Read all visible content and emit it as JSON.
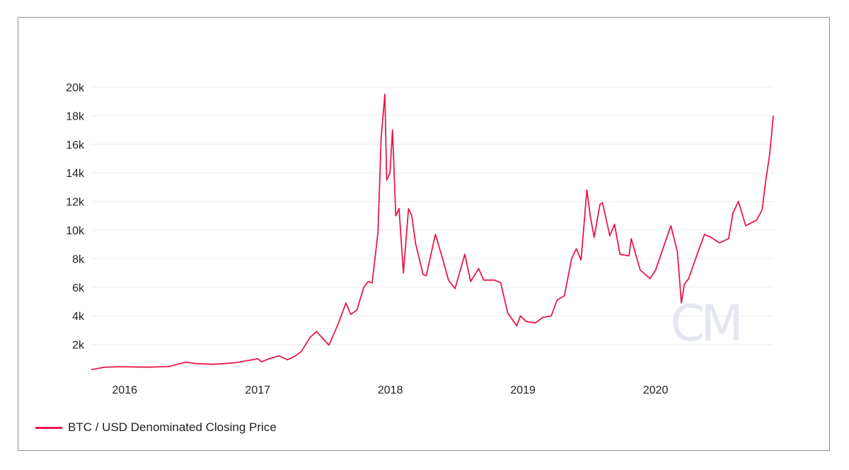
{
  "chart_data": {
    "type": "line",
    "title": "",
    "xlabel": "",
    "ylabel": "",
    "x_ticks": [
      "2016",
      "2017",
      "2018",
      "2019",
      "2020"
    ],
    "y_ticks": [
      "2k",
      "4k",
      "6k",
      "8k",
      "10k",
      "12k",
      "14k",
      "16k",
      "18k",
      "20k"
    ],
    "xlim": [
      "2015-10-01",
      "2020-11-20"
    ],
    "ylim": [
      0,
      20000
    ],
    "grid": true,
    "legend_position": "bottom-left",
    "watermark": "CM",
    "series": [
      {
        "name": "BTC / USD Denominated Closing Price",
        "color": "#e8194a",
        "x": [
          "2015-10-01",
          "2015-11-05",
          "2015-12-15",
          "2016-01-15",
          "2016-03-01",
          "2016-05-01",
          "2016-06-17",
          "2016-07-15",
          "2016-09-01",
          "2016-11-01",
          "2017-01-01",
          "2017-01-12",
          "2017-02-01",
          "2017-03-01",
          "2017-03-24",
          "2017-04-15",
          "2017-05-01",
          "2017-05-25",
          "2017-06-12",
          "2017-07-16",
          "2017-08-10",
          "2017-09-01",
          "2017-09-14",
          "2017-10-01",
          "2017-10-20",
          "2017-11-01",
          "2017-11-12",
          "2017-11-28",
          "2017-12-07",
          "2017-12-17",
          "2017-12-22",
          "2017-12-31",
          "2018-01-07",
          "2018-01-16",
          "2018-01-25",
          "2018-02-06",
          "2018-02-20",
          "2018-03-01",
          "2018-03-12",
          "2018-03-20",
          "2018-04-01",
          "2018-04-10",
          "2018-05-05",
          "2018-05-25",
          "2018-06-10",
          "2018-06-28",
          "2018-07-25",
          "2018-08-10",
          "2018-09-01",
          "2018-09-15",
          "2018-10-15",
          "2018-11-01",
          "2018-11-20",
          "2018-12-15",
          "2018-12-25",
          "2019-01-10",
          "2019-02-05",
          "2019-02-25",
          "2019-03-20",
          "2019-04-05",
          "2019-04-25",
          "2019-05-15",
          "2019-05-28",
          "2019-06-10",
          "2019-06-26",
          "2019-07-05",
          "2019-07-16",
          "2019-08-01",
          "2019-08-08",
          "2019-08-28",
          "2019-09-10",
          "2019-09-25",
          "2019-10-20",
          "2019-10-26",
          "2019-11-20",
          "2019-12-17",
          "2020-01-01",
          "2020-01-20",
          "2020-02-12",
          "2020-03-01",
          "2020-03-12",
          "2020-03-20",
          "2020-04-01",
          "2020-04-30",
          "2020-05-15",
          "2020-06-01",
          "2020-06-25",
          "2020-07-20",
          "2020-08-01",
          "2020-08-16",
          "2020-09-05",
          "2020-09-20",
          "2020-10-05",
          "2020-10-20",
          "2020-10-30",
          "2020-11-10",
          "2020-11-20"
        ],
        "values": [
          240,
          400,
          440,
          430,
          410,
          450,
          760,
          660,
          610,
          720,
          1000,
          780,
          1000,
          1200,
          930,
          1200,
          1500,
          2500,
          2900,
          1950,
          3400,
          4900,
          4100,
          4400,
          6000,
          6400,
          6300,
          9800,
          16500,
          19500,
          13500,
          14000,
          17000,
          11000,
          11500,
          7000,
          11500,
          11000,
          9000,
          8200,
          6900,
          6800,
          9700,
          8000,
          6500,
          5900,
          8300,
          6400,
          7300,
          6500,
          6500,
          6300,
          4200,
          3300,
          4000,
          3600,
          3500,
          3900,
          4000,
          5100,
          5400,
          8000,
          8700,
          7900,
          12800,
          11000,
          9500,
          11800,
          11900,
          9600,
          10400,
          8300,
          8200,
          9400,
          7200,
          6600,
          7200,
          8600,
          10300,
          8500,
          4900,
          6200,
          6600,
          8700,
          9700,
          9500,
          9100,
          9400,
          11200,
          12000,
          10300,
          10500,
          10700,
          11400,
          13400,
          15300,
          18000
        ]
      }
    ]
  }
}
